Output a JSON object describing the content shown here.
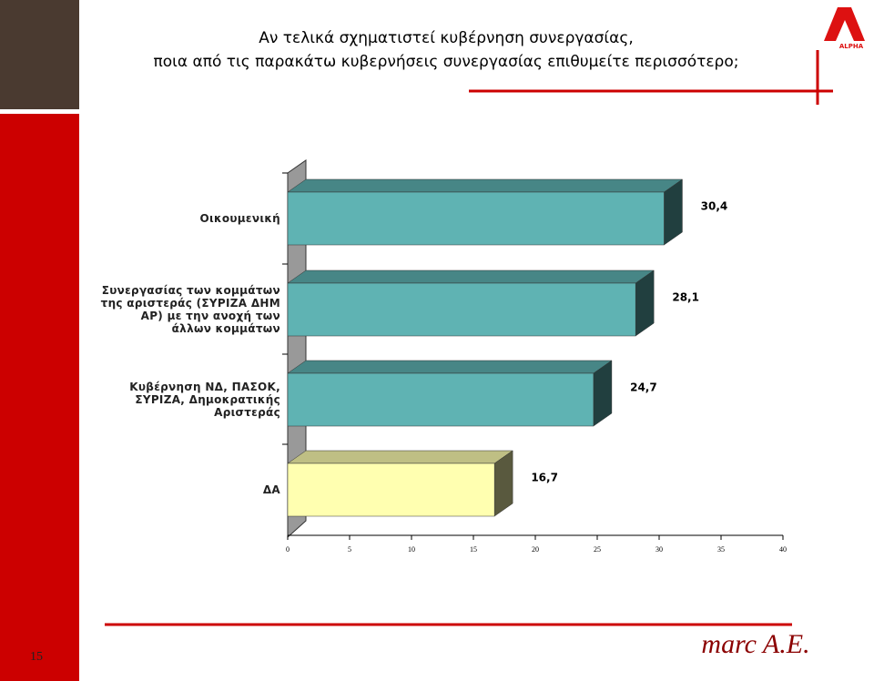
{
  "chart_data": {
    "type": "bar",
    "orientation": "horizontal",
    "title": [
      "Αν τελικά σχηματιστεί κυβέρνηση συνεργασίας,",
      "ποια από τις παρακάτω κυβερνήσεις συνεργασίας επιθυμείτε περισσότερο;"
    ],
    "categories": [
      "Οικουμενική",
      "Συνεργασίας των κομμάτων της αριστεράς (ΣΥΡΙΖΑ ΔΗΜ ΑΡ) με την ανοχή των άλλων κομμάτων",
      "Κυβέρνηση ΝΔ, ΠΑΣΟΚ, ΣΥΡΙΖΑ, Δημοκρατικής Αριστεράς",
      "ΔΑ"
    ],
    "values": [
      30.4,
      28.1,
      24.7,
      16.7
    ],
    "value_labels": [
      "30,4",
      "28,1",
      "24,7",
      "16,7"
    ],
    "colors": [
      "#5fb3b3",
      "#5fb3b3",
      "#5fb3b3",
      "#ffffb0"
    ],
    "xlim": [
      0,
      40
    ],
    "xticks": [
      0,
      5,
      10,
      15,
      20,
      25,
      30,
      35,
      40
    ]
  },
  "slide": {
    "page_number": "15",
    "logo": "marc A.E.",
    "channel": "ALPHA"
  }
}
